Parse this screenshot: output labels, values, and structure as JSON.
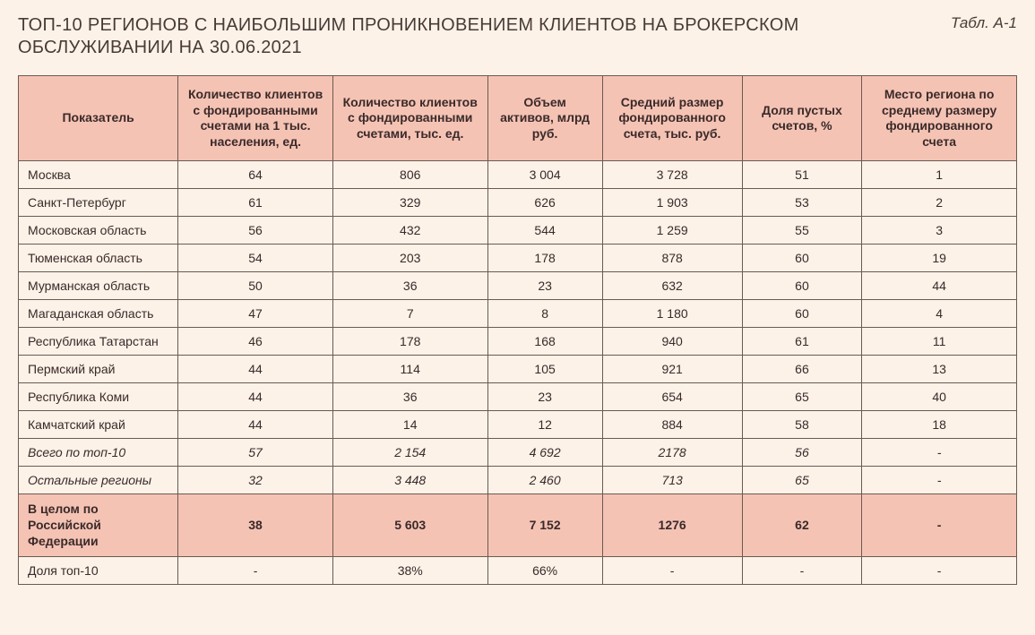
{
  "header": {
    "title": "ТОП-10 РЕГИОНОВ С НАИБОЛЬШИМ ПРОНИКНОВЕНИЕМ КЛИЕНТОВ НА БРОКЕРСКОМ ОБСЛУЖИВАНИИ НА 30.06.2021",
    "table_label": "Табл. А-1"
  },
  "table": {
    "type": "table",
    "background_color": "#fcf2e8",
    "header_bg": "#f5c3b4",
    "highlight_bg": "#f5c3b4",
    "border_color": "#6b5a52",
    "font_family": "Arial",
    "cell_fontsize": 14,
    "header_fontsize": 14,
    "title_fontsize": 20,
    "columns": [
      {
        "label": "Показатель",
        "align": "left",
        "width_pct": 16
      },
      {
        "label": "Количество клиентов с фондированными счетами на 1 тыс. населения, ед.",
        "align": "center",
        "width_pct": 15.5
      },
      {
        "label": "Количество клиентов с фондированными счетами, тыс. ед.",
        "align": "center",
        "width_pct": 15.5
      },
      {
        "label": "Объем активов, млрд руб.",
        "align": "center",
        "width_pct": 11.5
      },
      {
        "label": "Средний размер фондированного счета, тыс. руб.",
        "align": "center",
        "width_pct": 14
      },
      {
        "label": "Доля пустых счетов, %",
        "align": "center",
        "width_pct": 12
      },
      {
        "label": "Место региона по среднему размеру фондированного счета",
        "align": "center",
        "width_pct": 15.5
      }
    ],
    "rows": [
      {
        "style": "normal",
        "cells": [
          "Москва",
          "64",
          "806",
          "3 004",
          "3 728",
          "51",
          "1"
        ]
      },
      {
        "style": "normal",
        "cells": [
          "Санкт-Петербург",
          "61",
          "329",
          "626",
          "1 903",
          "53",
          "2"
        ]
      },
      {
        "style": "normal",
        "cells": [
          "Московская область",
          "56",
          "432",
          "544",
          "1 259",
          "55",
          "3"
        ]
      },
      {
        "style": "normal",
        "cells": [
          "Тюменская область",
          "54",
          "203",
          "178",
          "878",
          "60",
          "19"
        ]
      },
      {
        "style": "normal",
        "cells": [
          "Мурманская область",
          "50",
          "36",
          "23",
          "632",
          "60",
          "44"
        ]
      },
      {
        "style": "normal",
        "cells": [
          "Магаданская область",
          "47",
          "7",
          "8",
          "1 180",
          "60",
          "4"
        ]
      },
      {
        "style": "normal",
        "cells": [
          "Республика Татарстан",
          "46",
          "178",
          "168",
          "940",
          "61",
          "11"
        ]
      },
      {
        "style": "normal",
        "cells": [
          "Пермский край",
          "44",
          "114",
          "105",
          "921",
          "66",
          "13"
        ]
      },
      {
        "style": "normal",
        "cells": [
          "Республика Коми",
          "44",
          "36",
          "23",
          "654",
          "65",
          "40"
        ]
      },
      {
        "style": "normal",
        "cells": [
          "Камчатский край",
          "44",
          "14",
          "12",
          "884",
          "58",
          "18"
        ]
      },
      {
        "style": "italic",
        "cells": [
          "Всего по топ-10",
          "57",
          "2 154",
          "4 692",
          "2178",
          "56",
          "-"
        ]
      },
      {
        "style": "italic",
        "cells": [
          "Остальные регионы",
          "32",
          "3 448",
          "2 460",
          "713",
          "65",
          "-"
        ]
      },
      {
        "style": "highlight",
        "cells": [
          "В целом по Российской Федерации",
          "38",
          "5 603",
          "7 152",
          "1276",
          "62",
          "-"
        ]
      },
      {
        "style": "normal",
        "cells": [
          "Доля топ-10",
          "-",
          "38%",
          "66%",
          "-",
          "-",
          "-"
        ]
      }
    ]
  }
}
